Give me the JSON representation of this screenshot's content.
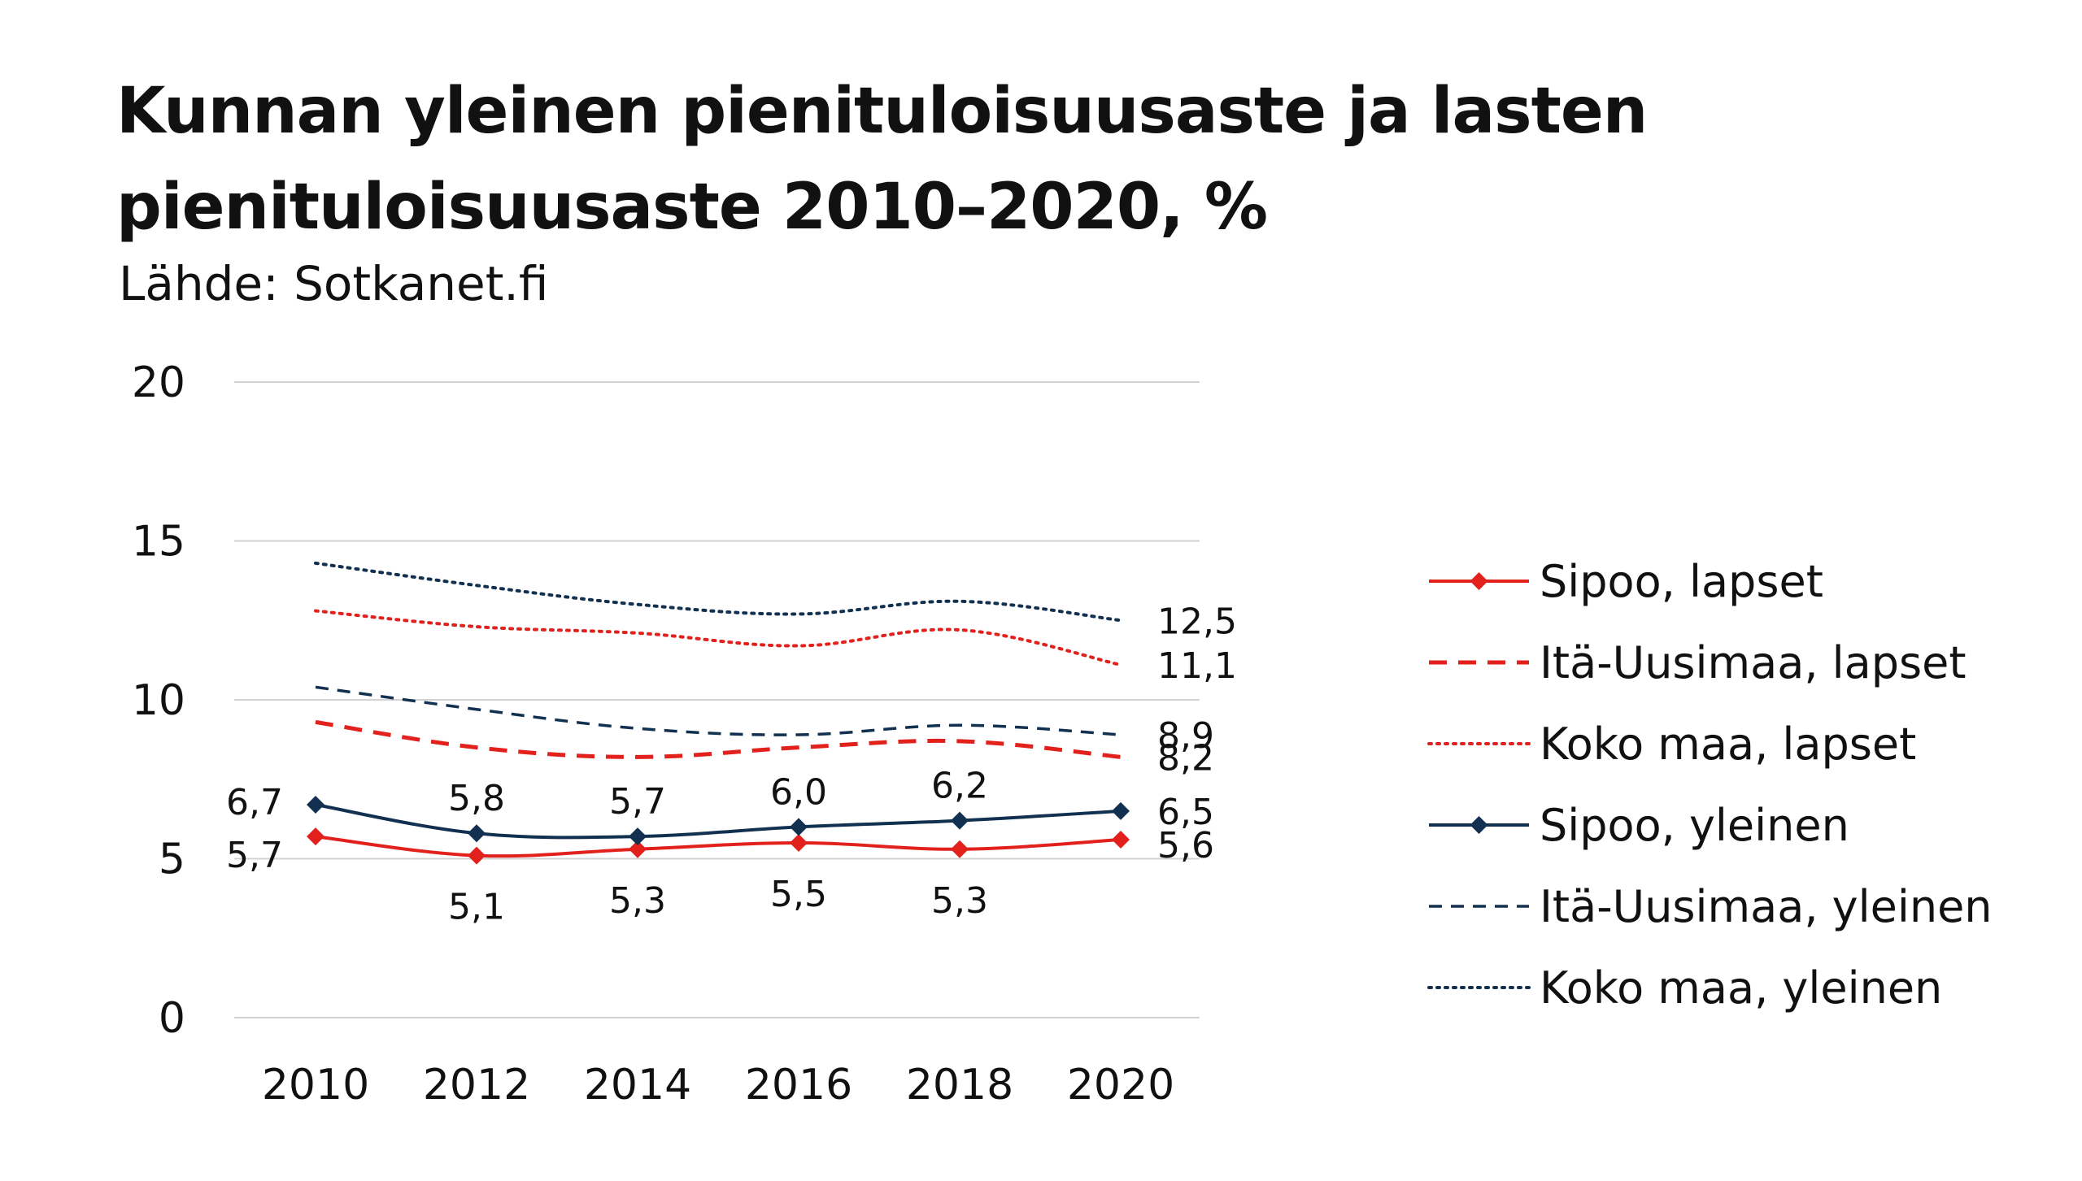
{
  "title": {
    "line1": "Kunnan yleinen pienituloisuusaste ja lasten",
    "line2": "pienituloisuusaste 2010–2020, %"
  },
  "source": "Lähde: Sotkanet.fi",
  "chart_data": {
    "type": "line",
    "title": "Kunnan yleinen pienituloisuusaste ja lasten pienituloisuusaste 2010–2020, %",
    "subtitle": "Lähde: Sotkanet.fi",
    "xlabel": "",
    "ylabel": "",
    "categories": [
      "2010",
      "2012",
      "2014",
      "2016",
      "2018",
      "2020"
    ],
    "yticks": [
      "0",
      "5",
      "10",
      "15",
      "20"
    ],
    "ylim": [
      0,
      20
    ],
    "grid": true,
    "legend_position": "right",
    "series": [
      {
        "name": "Sipoo, lapset",
        "color": "#e2211c",
        "style": "solid-marker",
        "values": [
          5.7,
          5.1,
          5.3,
          5.5,
          5.3,
          5.6
        ],
        "labels": [
          "5,7",
          "5,1",
          "5,3",
          "5,5",
          "5,3",
          "5,6"
        ]
      },
      {
        "name": "Itä-Uusimaa, lapset",
        "color": "#e2211c",
        "style": "dashed",
        "values": [
          9.3,
          8.5,
          8.2,
          8.5,
          8.7,
          8.2
        ],
        "labels": [
          "",
          "",
          "",
          "",
          "",
          "8,2"
        ]
      },
      {
        "name": "Koko maa, lapset",
        "color": "#e2211c",
        "style": "dotted",
        "values": [
          12.8,
          12.3,
          12.1,
          11.7,
          12.2,
          11.1
        ],
        "labels": [
          "",
          "",
          "",
          "",
          "",
          "11,1"
        ]
      },
      {
        "name": "Sipoo, yleinen",
        "color": "#12304f",
        "style": "solid-marker",
        "values": [
          6.7,
          5.8,
          5.7,
          6.0,
          6.2,
          6.5
        ],
        "labels": [
          "6,7",
          "5,8",
          "5,7",
          "6,0",
          "6,2",
          "6,5"
        ]
      },
      {
        "name": "Itä-Uusimaa, yleinen",
        "color": "#12304f",
        "style": "dashed-thin",
        "values": [
          10.4,
          9.7,
          9.1,
          8.9,
          9.2,
          8.9
        ],
        "labels": [
          "",
          "",
          "",
          "",
          "",
          "8,9"
        ]
      },
      {
        "name": "Koko maa, yleinen",
        "color": "#12304f",
        "style": "dotted",
        "values": [
          14.3,
          13.6,
          13.0,
          12.7,
          13.1,
          12.5
        ],
        "labels": [
          "",
          "",
          "",
          "",
          "",
          "12,5"
        ]
      }
    ]
  }
}
